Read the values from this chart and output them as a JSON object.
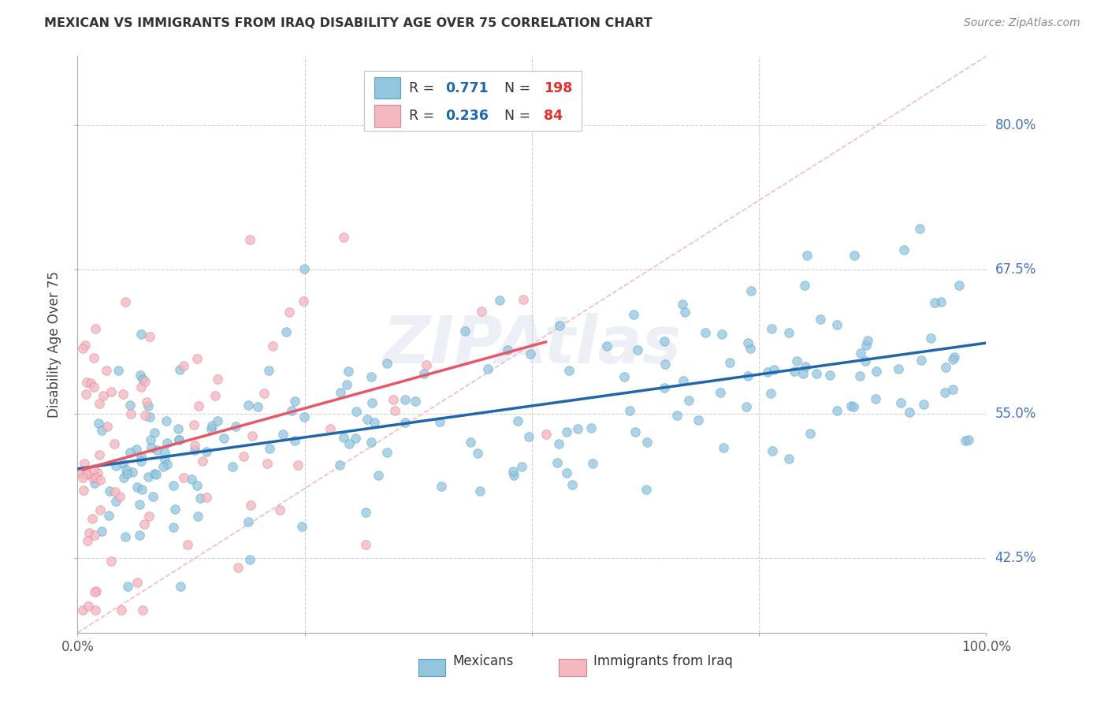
{
  "title": "MEXICAN VS IMMIGRANTS FROM IRAQ DISABILITY AGE OVER 75 CORRELATION CHART",
  "source": "Source: ZipAtlas.com",
  "ylabel": "Disability Age Over 75",
  "ytick_labels": [
    "42.5%",
    "55.0%",
    "67.5%",
    "80.0%"
  ],
  "ytick_values": [
    0.425,
    0.55,
    0.675,
    0.8
  ],
  "xlim": [
    0.0,
    1.0
  ],
  "ylim": [
    0.36,
    0.86
  ],
  "legend_blue_R": "0.771",
  "legend_blue_N": "198",
  "legend_pink_R": "0.236",
  "legend_pink_N": "84",
  "watermark": "ZIPAtlas",
  "blue_color": "#92c5de",
  "pink_color": "#f4b8c1",
  "blue_line_color": "#2166ac",
  "pink_line_color": "#e8566a",
  "diagonal_color": "#f4b8c1",
  "grid_color": "#d0d0d0",
  "ytick_color": "#4472c4",
  "title_color": "#333333",
  "source_color": "#888888"
}
